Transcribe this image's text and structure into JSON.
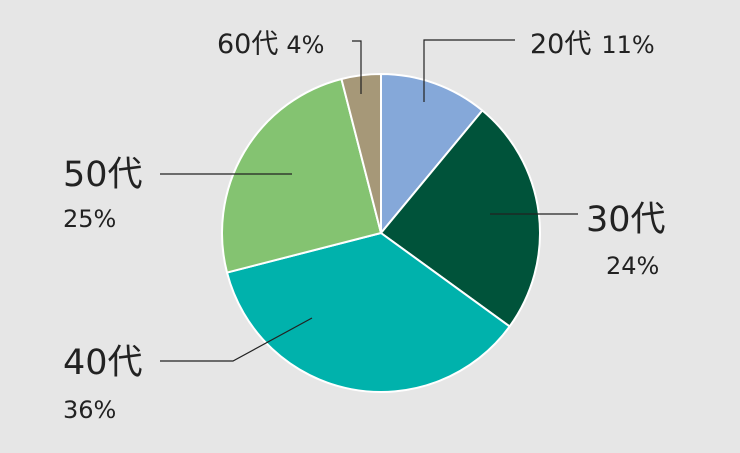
{
  "chart_data": {
    "type": "pie",
    "slices": [
      {
        "name": "20代",
        "value": 11,
        "label": "11%",
        "color": "#85a8d9"
      },
      {
        "name": "30代",
        "value": 24,
        "label": "24%",
        "color": "#00533a"
      },
      {
        "name": "40代",
        "value": 36,
        "label": "36%",
        "color": "#00b2ac"
      },
      {
        "name": "50代",
        "value": 25,
        "label": "25%",
        "color": "#84c371"
      },
      {
        "name": "60代",
        "value": 4,
        "label": "4%",
        "color": "#a69878"
      }
    ],
    "start": "top",
    "direction": "clockwise",
    "legend": "none"
  }
}
